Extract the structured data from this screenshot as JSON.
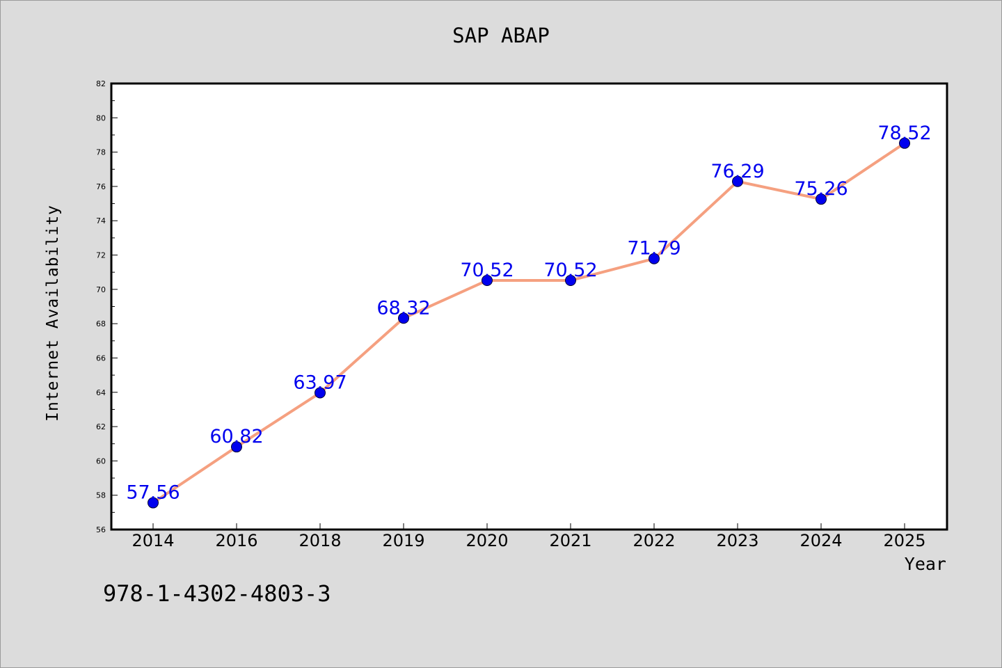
{
  "chart_data": {
    "type": "line",
    "title": "SAP ABAP",
    "xlabel": "Year",
    "ylabel": "Internet Availability",
    "categories": [
      "2014",
      "2016",
      "2018",
      "2019",
      "2020",
      "2021",
      "2022",
      "2023",
      "2024",
      "2025"
    ],
    "values": [
      57.56,
      60.82,
      63.97,
      68.32,
      70.52,
      70.52,
      71.79,
      76.29,
      75.26,
      78.52
    ],
    "value_labels": [
      "57.56",
      "60.82",
      "63.97",
      "68.32",
      "70.52",
      "70.52",
      "71.79",
      "76.29",
      "75.26",
      "78.52"
    ],
    "ylim": [
      56,
      82
    ],
    "yticks": [
      "56",
      "58",
      "60",
      "62",
      "64",
      "66",
      "68",
      "70",
      "72",
      "74",
      "76",
      "78",
      "80",
      "82"
    ],
    "grid": false,
    "line_color": "#f5a080",
    "marker_color": "#0000ee",
    "label_color": "#0000ee"
  },
  "footnote": "978-1-4302-4803-3"
}
